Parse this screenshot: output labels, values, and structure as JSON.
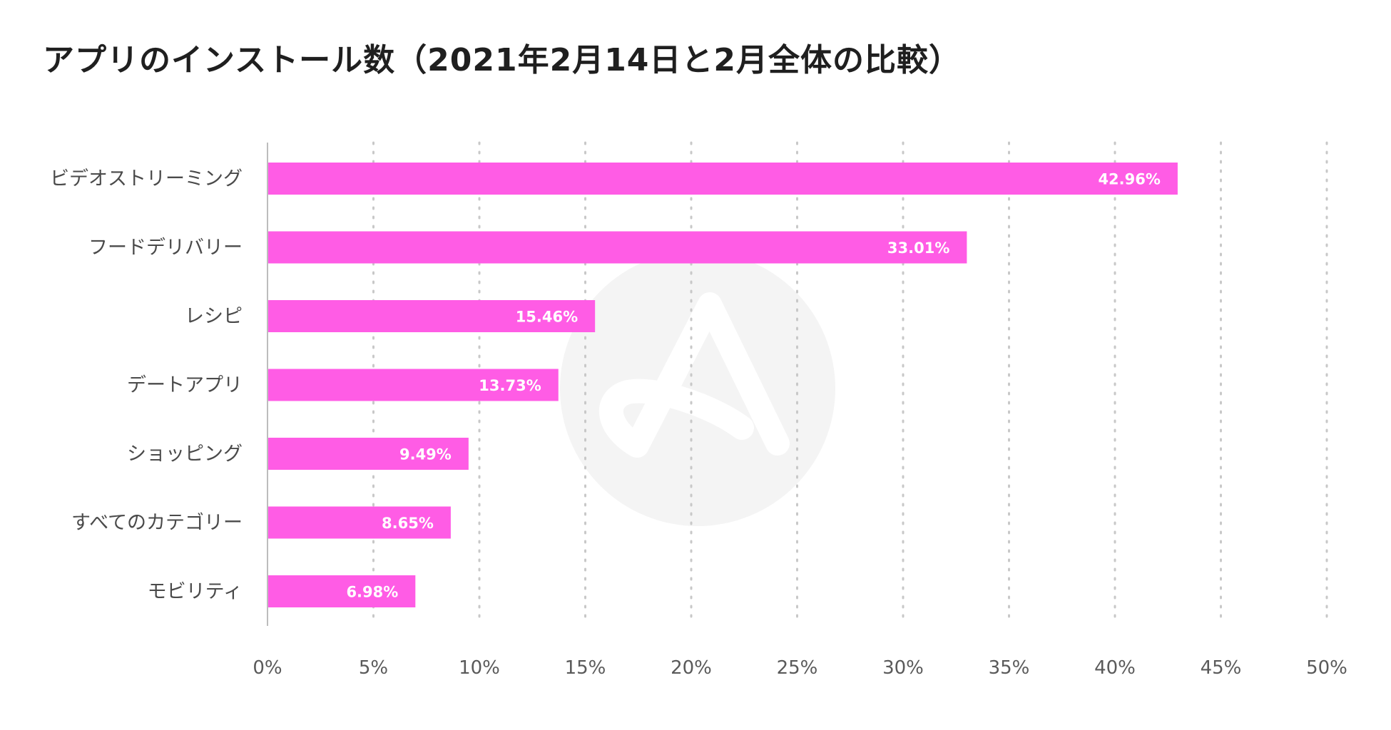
{
  "chart_data": {
    "type": "bar",
    "orientation": "horizontal",
    "title": "アプリのインストール数（2021年2月14日と2月全体の比較）",
    "xlabel": "",
    "ylabel": "",
    "xlim": [
      0,
      50
    ],
    "xticks": [
      0,
      5,
      10,
      15,
      20,
      25,
      30,
      35,
      40,
      45,
      50
    ],
    "tick_suffix": "%",
    "grid": "vertical-dotted",
    "categories": [
      "ビデオストリーミング",
      "フードデリバリー",
      "レシピ",
      "デートアプリ",
      "ショッピング",
      "すべてのカテゴリー",
      "モビリティ"
    ],
    "values": [
      42.96,
      33.01,
      15.46,
      13.73,
      9.49,
      8.65,
      6.98
    ],
    "value_labels": [
      "42.96%",
      "33.01%",
      "15.46%",
      "13.73%",
      "9.49%",
      "8.65%",
      "6.98%"
    ],
    "bar_color": "#ff5ce5",
    "grid_color": "#c8c8c8",
    "axis_color": "#bdbdbd",
    "watermark_color": "#f4f4f4"
  }
}
